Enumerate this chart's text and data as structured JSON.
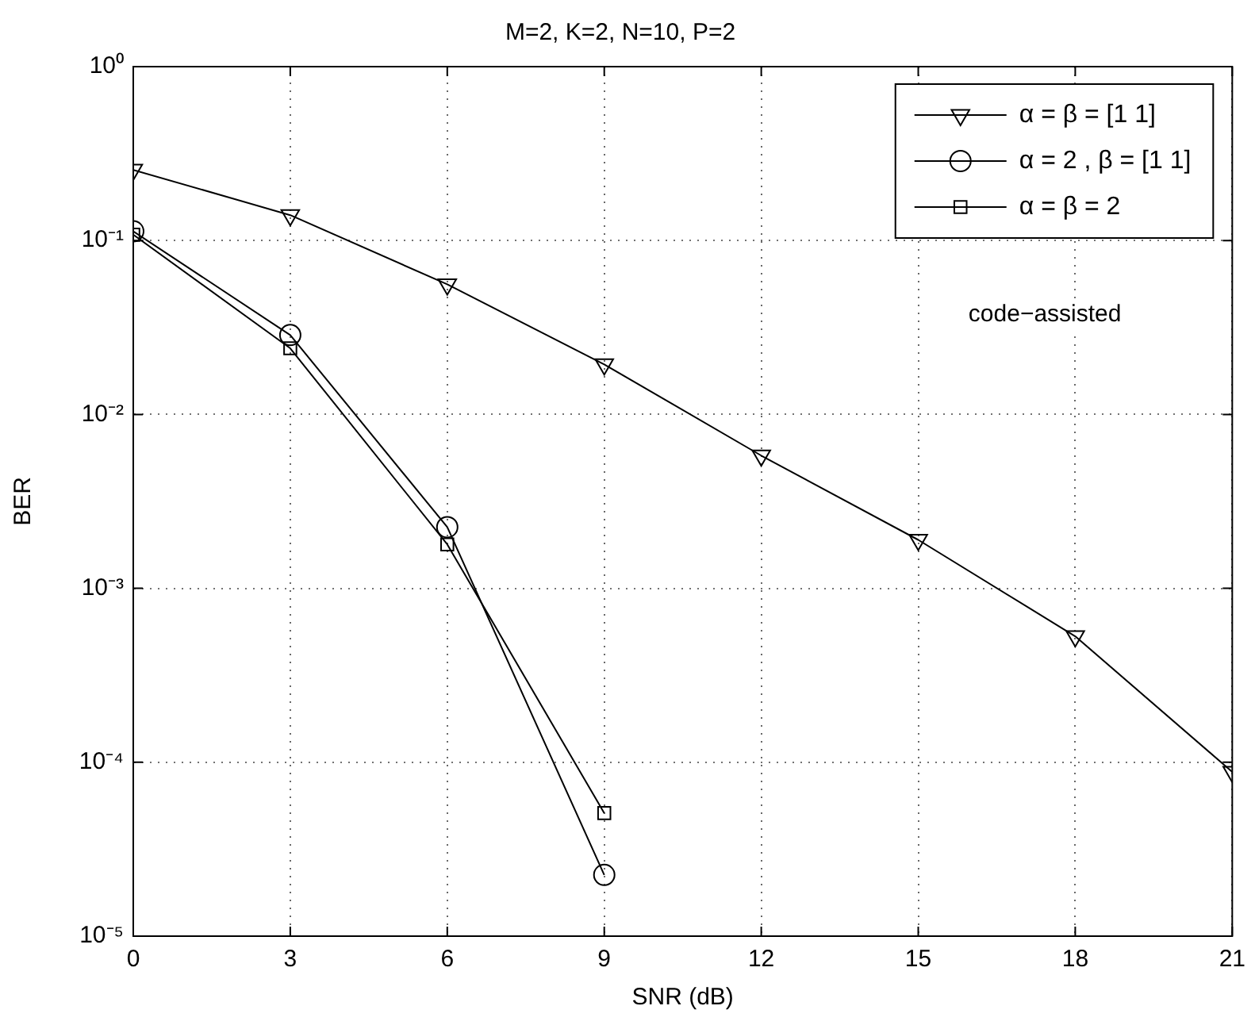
{
  "chart_data": {
    "type": "line",
    "title": "M=2, K=2, N=10, P=2",
    "xlabel": "SNR (dB)",
    "ylabel": "BER",
    "x": [
      0,
      3,
      6,
      9,
      12,
      15,
      18,
      21
    ],
    "series": [
      {
        "name": "α = β = [1 1]",
        "color": "#000000",
        "marker": "triangle",
        "values": [
          0.255,
          0.14,
          0.056,
          0.0194,
          0.0058,
          0.0019,
          0.00053,
          8.8e-05
        ]
      },
      {
        "name": "α = 2 , β = [1 1]",
        "color": "#000000",
        "marker": "circle",
        "values": [
          0.113,
          0.0286,
          0.00225,
          2.25e-05,
          null,
          null,
          null,
          null
        ]
      },
      {
        "name": "α = β = 2",
        "color": "#000000",
        "marker": "square",
        "values": [
          0.108,
          0.024,
          0.00179,
          5.1e-05,
          null,
          null,
          null,
          null
        ]
      }
    ],
    "log": "y",
    "xlim": [
      0,
      21
    ],
    "xticks": [
      0,
      3,
      6,
      9,
      12,
      15,
      18,
      21
    ],
    "ylim": [
      1e-05,
      1
    ],
    "yticks": [
      {
        "value": 1e-05,
        "label": "10⁻⁵"
      },
      {
        "value": 0.0001,
        "label": "10⁻⁴"
      },
      {
        "value": 0.001,
        "label": "10⁻³"
      },
      {
        "value": 0.01,
        "label": "10⁻²"
      },
      {
        "value": 0.1,
        "label": "10⁻¹"
      },
      {
        "value": 1,
        "label": "10⁰"
      }
    ],
    "grid": true,
    "legend": "top right",
    "line_style": "solid",
    "annotations": [
      "code−assisted"
    ]
  }
}
